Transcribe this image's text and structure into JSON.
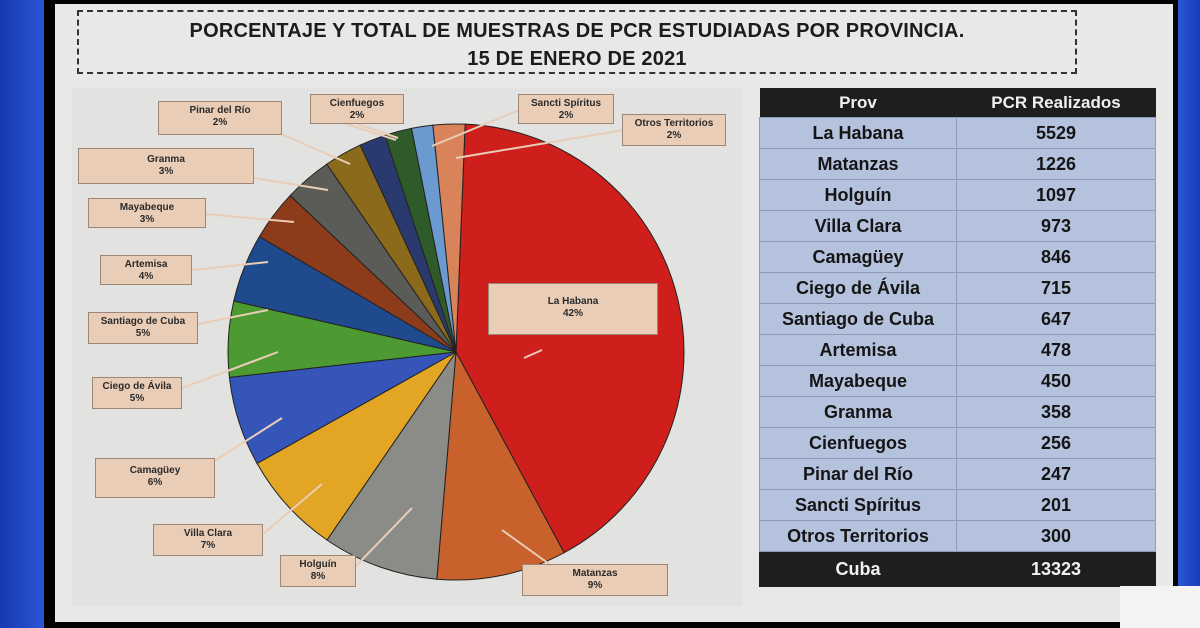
{
  "title": {
    "line1": "PORCENTAJE Y TOTAL DE MUESTRAS DE PCR ESTUDIADAS POR PROVINCIA.",
    "line2": "15 DE ENERO DE 2021"
  },
  "chart_data": {
    "type": "pie",
    "title": "PORCENTAJE Y TOTAL DE MUESTRAS DE PCR ESTUDIADAS POR PROVINCIA. 15 DE ENERO DE 2021",
    "slices": [
      {
        "label": "La Habana",
        "pct_label": "42%",
        "value": 5529,
        "color": "#cf1f1c"
      },
      {
        "label": "Matanzas",
        "pct_label": "9%",
        "value": 1226,
        "color": "#c8612c"
      },
      {
        "label": "Holguín",
        "pct_label": "8%",
        "value": 1097,
        "color": "#8b8b88"
      },
      {
        "label": "Villa Clara",
        "pct_label": "7%",
        "value": 973,
        "color": "#e3a524"
      },
      {
        "label": "Camagüey",
        "pct_label": "6%",
        "value": 846,
        "color": "#3556b8"
      },
      {
        "label": "Ciego de Ávila",
        "pct_label": "5%",
        "value": 715,
        "color": "#4d9a32"
      },
      {
        "label": "Santiago de Cuba",
        "pct_label": "5%",
        "value": 647,
        "color": "#1f4b8e"
      },
      {
        "label": "Artemisa",
        "pct_label": "4%",
        "value": 478,
        "color": "#8c3c1a"
      },
      {
        "label": "Mayabeque",
        "pct_label": "3%",
        "value": 450,
        "color": "#5b5b58"
      },
      {
        "label": "Granma",
        "pct_label": "3%",
        "value": 358,
        "color": "#8c6a1c"
      },
      {
        "label": "Pinar del Río",
        "pct_label": "2%",
        "value": 247,
        "color": "#2a3a6e"
      },
      {
        "label": "Cienfuegos",
        "pct_label": "2%",
        "value": 256,
        "color": "#2f5a2a"
      },
      {
        "label": "Sancti Spíritus",
        "pct_label": "2%",
        "value": 201,
        "color": "#6b9ad0"
      },
      {
        "label": "Otros Territorios",
        "pct_label": "2%",
        "value": 300,
        "color": "#d8835a"
      }
    ]
  },
  "labels": {
    "la_habana": {
      "name": "La Habana",
      "pct": "42%"
    },
    "matanzas": {
      "name": "Matanzas",
      "pct": "9%"
    },
    "holguin": {
      "name": "Holguín",
      "pct": "8%"
    },
    "villa_clara": {
      "name": "Villa Clara",
      "pct": "7%"
    },
    "camaguey": {
      "name": "Camagüey",
      "pct": "6%"
    },
    "ciego": {
      "name": "Ciego de Ávila",
      "pct": "5%"
    },
    "santiago": {
      "name": "Santiago de Cuba",
      "pct": "5%"
    },
    "artemisa": {
      "name": "Artemisa",
      "pct": "4%"
    },
    "mayabeque": {
      "name": "Mayabeque",
      "pct": "3%"
    },
    "granma": {
      "name": "Granma",
      "pct": "3%"
    },
    "pinar": {
      "name": "Pinar del Río",
      "pct": "2%"
    },
    "cienfuegos": {
      "name": "Cienfuegos",
      "pct": "2%"
    },
    "sancti": {
      "name": "Sancti Spíritus",
      "pct": "2%"
    },
    "otros": {
      "name": "Otros Territorios",
      "pct": "2%"
    }
  },
  "table": {
    "headers": [
      "Prov",
      "PCR Realizados"
    ],
    "rows": [
      [
        "La Habana",
        "5529"
      ],
      [
        "Matanzas",
        "1226"
      ],
      [
        "Holguín",
        "1097"
      ],
      [
        "Villa Clara",
        "973"
      ],
      [
        "Camagüey",
        "846"
      ],
      [
        "Ciego de Ávila",
        "715"
      ],
      [
        "Santiago de Cuba",
        "647"
      ],
      [
        "Artemisa",
        "478"
      ],
      [
        "Mayabeque",
        "450"
      ],
      [
        "Granma",
        "358"
      ],
      [
        "Cienfuegos",
        "256"
      ],
      [
        "Pinar del Río",
        "247"
      ],
      [
        "Sancti Spíritus",
        "201"
      ],
      [
        "Otros Territorios",
        "300"
      ]
    ],
    "total": [
      "Cuba",
      "13323"
    ]
  }
}
